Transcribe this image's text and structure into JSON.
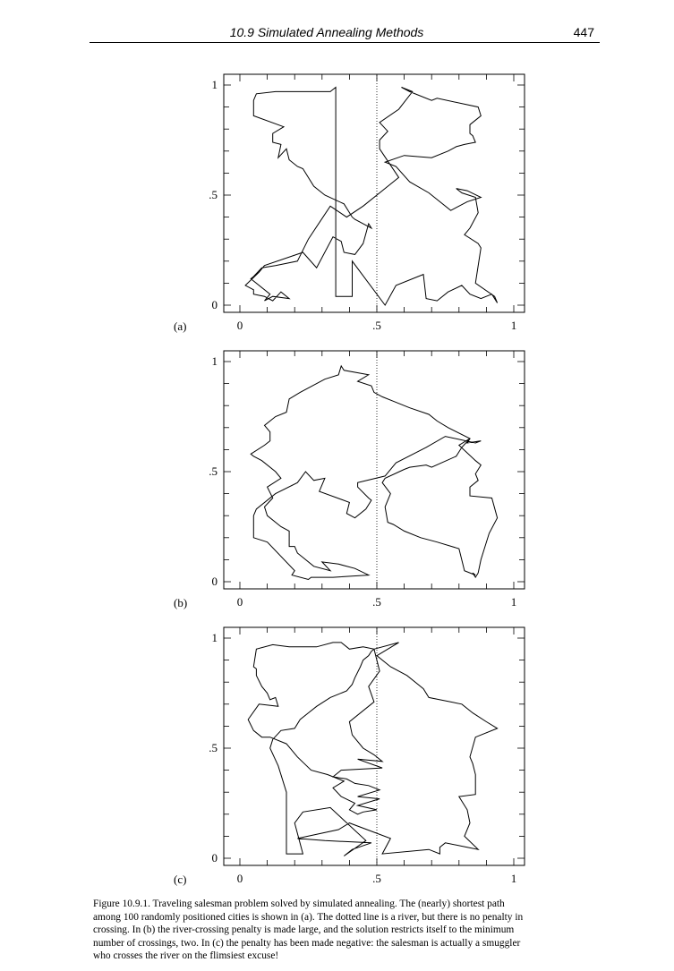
{
  "header": {
    "section_title": "10.9 Simulated Annealing Methods",
    "page_number": "447"
  },
  "axes": {
    "x_ticks": [
      "0",
      ".5",
      "1"
    ],
    "y_ticks": [
      "0",
      ".5",
      "1"
    ],
    "xlim": [
      0,
      1
    ],
    "ylim": [
      0,
      1
    ],
    "river_x": 0.5,
    "river_style": "dotted"
  },
  "chart_data": [
    {
      "type": "line",
      "panel_label": "(a)",
      "series": [
        {
          "x": [
            0.35,
            0.41,
            0.41,
            0.53,
            0.57,
            0.67,
            0.68,
            0.72,
            0.76,
            0.81,
            0.84,
            0.88,
            0.92,
            0.94,
            0.93,
            0.86,
            0.88,
            0.87,
            0.82,
            0.84,
            0.87,
            0.86,
            0.81,
            0.79,
            0.83,
            0.88,
            0.83,
            0.77,
            0.69,
            0.62,
            0.57,
            0.53,
            0.6,
            0.7,
            0.76,
            0.79,
            0.82,
            0.86,
            0.85,
            0.84,
            0.84,
            0.88,
            0.87,
            0.72,
            0.7,
            0.62,
            0.59,
            0.63,
            0.58,
            0.51,
            0.54,
            0.51,
            0.51,
            0.58,
            0.53,
            0.45,
            0.39,
            0.33,
            0.25,
            0.21,
            0.13,
            0.08,
            0.05,
            0.04,
            0.11,
            0.09,
            0.12,
            0.18,
            0.15,
            0.12,
            0.09,
            0.05,
            0.05,
            0.02,
            0.07,
            0.09,
            0.23,
            0.28,
            0.34,
            0.37,
            0.38,
            0.42,
            0.45,
            0.47,
            0.48,
            0.42,
            0.41,
            0.38,
            0.31,
            0.27,
            0.23,
            0.21,
            0.18,
            0.17,
            0.14,
            0.15,
            0.12,
            0.12,
            0.16,
            0.05,
            0.05,
            0.06,
            0.13,
            0.21,
            0.33,
            0.35
          ],
          "y": [
            0.04,
            0.04,
            0.2,
            0.0,
            0.09,
            0.14,
            0.03,
            0.02,
            0.06,
            0.09,
            0.05,
            0.03,
            0.05,
            0.01,
            0.04,
            0.1,
            0.26,
            0.28,
            0.32,
            0.35,
            0.42,
            0.49,
            0.51,
            0.53,
            0.52,
            0.49,
            0.47,
            0.43,
            0.51,
            0.56,
            0.63,
            0.65,
            0.68,
            0.67,
            0.7,
            0.72,
            0.73,
            0.74,
            0.77,
            0.78,
            0.82,
            0.86,
            0.9,
            0.94,
            0.93,
            0.97,
            0.99,
            0.97,
            0.89,
            0.83,
            0.79,
            0.75,
            0.71,
            0.58,
            0.53,
            0.45,
            0.4,
            0.45,
            0.3,
            0.2,
            0.18,
            0.17,
            0.13,
            0.12,
            0.05,
            0.02,
            0.04,
            0.03,
            0.06,
            0.02,
            0.04,
            0.05,
            0.07,
            0.09,
            0.15,
            0.18,
            0.24,
            0.17,
            0.31,
            0.29,
            0.24,
            0.23,
            0.28,
            0.37,
            0.35,
            0.39,
            0.4,
            0.46,
            0.5,
            0.54,
            0.62,
            0.63,
            0.66,
            0.71,
            0.67,
            0.73,
            0.74,
            0.78,
            0.81,
            0.86,
            0.93,
            0.96,
            0.97,
            0.97,
            0.97,
            0.99
          ]
        }
      ]
    },
    {
      "type": "line",
      "panel_label": "(b)",
      "series": [
        {
          "x": [
            0.1,
            0.05,
            0.05,
            0.06,
            0.13,
            0.21,
            0.24,
            0.27,
            0.31,
            0.29,
            0.4,
            0.39,
            0.42,
            0.46,
            0.48,
            0.47,
            0.43,
            0.43,
            0.53,
            0.57,
            0.68,
            0.75,
            0.86,
            0.88,
            0.83,
            0.84,
            0.81,
            0.79,
            0.7,
            0.68,
            0.62,
            0.6,
            0.53,
            0.52,
            0.55,
            0.53,
            0.54,
            0.56,
            0.6,
            0.66,
            0.72,
            0.8,
            0.82,
            0.86,
            0.85,
            0.86,
            0.87,
            0.88,
            0.91,
            0.94,
            0.92,
            0.84,
            0.84,
            0.87,
            0.86,
            0.88,
            0.86,
            0.8,
            0.84,
            0.76,
            0.72,
            0.69,
            0.62,
            0.56,
            0.52,
            0.49,
            0.48,
            0.43,
            0.47,
            0.38,
            0.37,
            0.36,
            0.31,
            0.22,
            0.18,
            0.17,
            0.13,
            0.09,
            0.11,
            0.11,
            0.09,
            0.04,
            0.05,
            0.08,
            0.13,
            0.15,
            0.1,
            0.12,
            0.09,
            0.1,
            0.15,
            0.18,
            0.18,
            0.2,
            0.21,
            0.23,
            0.27,
            0.33,
            0.3,
            0.36,
            0.42,
            0.47,
            0.34,
            0.26,
            0.25,
            0.19,
            0.2,
            0.1
          ],
          "y": [
            0.18,
            0.2,
            0.3,
            0.33,
            0.4,
            0.45,
            0.5,
            0.46,
            0.47,
            0.41,
            0.36,
            0.31,
            0.29,
            0.33,
            0.37,
            0.38,
            0.43,
            0.45,
            0.48,
            0.54,
            0.61,
            0.66,
            0.63,
            0.64,
            0.63,
            0.65,
            0.61,
            0.57,
            0.52,
            0.53,
            0.52,
            0.51,
            0.47,
            0.45,
            0.4,
            0.34,
            0.27,
            0.26,
            0.23,
            0.2,
            0.18,
            0.15,
            0.05,
            0.03,
            0.04,
            0.02,
            0.04,
            0.1,
            0.22,
            0.29,
            0.38,
            0.39,
            0.43,
            0.46,
            0.49,
            0.53,
            0.55,
            0.62,
            0.65,
            0.7,
            0.73,
            0.76,
            0.79,
            0.82,
            0.84,
            0.86,
            0.89,
            0.91,
            0.94,
            0.96,
            0.98,
            0.94,
            0.92,
            0.86,
            0.83,
            0.77,
            0.75,
            0.71,
            0.68,
            0.64,
            0.62,
            0.58,
            0.57,
            0.55,
            0.5,
            0.47,
            0.43,
            0.38,
            0.34,
            0.3,
            0.25,
            0.23,
            0.16,
            0.16,
            0.13,
            0.11,
            0.07,
            0.05,
            0.09,
            0.08,
            0.06,
            0.03,
            0.02,
            0.02,
            0.01,
            0.03,
            0.05,
            0.18
          ]
        }
      ]
    },
    {
      "type": "line",
      "panel_label": "(c)",
      "series": [
        {
          "x": [
            0.17,
            0.23,
            0.2,
            0.23,
            0.33,
            0.46,
            0.38,
            0.41,
            0.48,
            0.31,
            0.21,
            0.36,
            0.4,
            0.55,
            0.52,
            0.69,
            0.73,
            0.73,
            0.75,
            0.83,
            0.87,
            0.82,
            0.84,
            0.83,
            0.8,
            0.86,
            0.86,
            0.85,
            0.84,
            0.86,
            0.94,
            0.9,
            0.85,
            0.81,
            0.69,
            0.67,
            0.61,
            0.55,
            0.5,
            0.58,
            0.49,
            0.51,
            0.47,
            0.49,
            0.4,
            0.41,
            0.45,
            0.49,
            0.52,
            0.43,
            0.52,
            0.37,
            0.34,
            0.39,
            0.42,
            0.47,
            0.51,
            0.43,
            0.51,
            0.43,
            0.5,
            0.45,
            0.43,
            0.4,
            0.42,
            0.37,
            0.34,
            0.38,
            0.32,
            0.26,
            0.21,
            0.17,
            0.11,
            0.08,
            0.05,
            0.03,
            0.07,
            0.14,
            0.13,
            0.11,
            0.1,
            0.08,
            0.06,
            0.06,
            0.05,
            0.06,
            0.12,
            0.18,
            0.26,
            0.28,
            0.34,
            0.37,
            0.4,
            0.45,
            0.49,
            0.48,
            0.47,
            0.45,
            0.44,
            0.42,
            0.41,
            0.39,
            0.33,
            0.28,
            0.25,
            0.22,
            0.2,
            0.15,
            0.12,
            0.11,
            0.14,
            0.17
          ],
          "y": [
            0.02,
            0.02,
            0.16,
            0.21,
            0.23,
            0.08,
            0.01,
            0.04,
            0.07,
            0.08,
            0.09,
            0.13,
            0.16,
            0.09,
            0.02,
            0.04,
            0.02,
            0.05,
            0.07,
            0.05,
            0.04,
            0.1,
            0.16,
            0.22,
            0.28,
            0.29,
            0.38,
            0.43,
            0.46,
            0.55,
            0.59,
            0.62,
            0.66,
            0.7,
            0.73,
            0.77,
            0.83,
            0.87,
            0.92,
            0.98,
            0.95,
            0.85,
            0.78,
            0.71,
            0.62,
            0.56,
            0.5,
            0.47,
            0.44,
            0.45,
            0.41,
            0.4,
            0.37,
            0.36,
            0.34,
            0.33,
            0.31,
            0.28,
            0.27,
            0.24,
            0.22,
            0.21,
            0.2,
            0.22,
            0.25,
            0.28,
            0.32,
            0.35,
            0.38,
            0.4,
            0.46,
            0.52,
            0.55,
            0.55,
            0.58,
            0.63,
            0.7,
            0.69,
            0.73,
            0.72,
            0.75,
            0.78,
            0.83,
            0.86,
            0.87,
            0.95,
            0.97,
            0.96,
            0.96,
            0.96,
            0.98,
            0.98,
            0.95,
            0.96,
            0.95,
            0.94,
            0.92,
            0.9,
            0.87,
            0.82,
            0.79,
            0.76,
            0.73,
            0.69,
            0.66,
            0.63,
            0.59,
            0.58,
            0.54,
            0.5,
            0.42,
            0.3
          ]
        }
      ]
    }
  ],
  "caption": {
    "lines": [
      "Figure 10.9.1.   Traveling salesman problem solved by simulated annealing.  The (nearly) shortest path",
      "among 100 randomly positioned cities is shown in (a). The dotted line is a river, but there is no penalty in",
      "crossing.  In (b) the river-crossing penalty is made large, and the solution restricts itself to the minimum",
      "number of crossings, two.  In (c) the penalty has been made negative: the salesman is actually a smuggler",
      "who crosses the river on the flimsiest excuse!"
    ]
  }
}
